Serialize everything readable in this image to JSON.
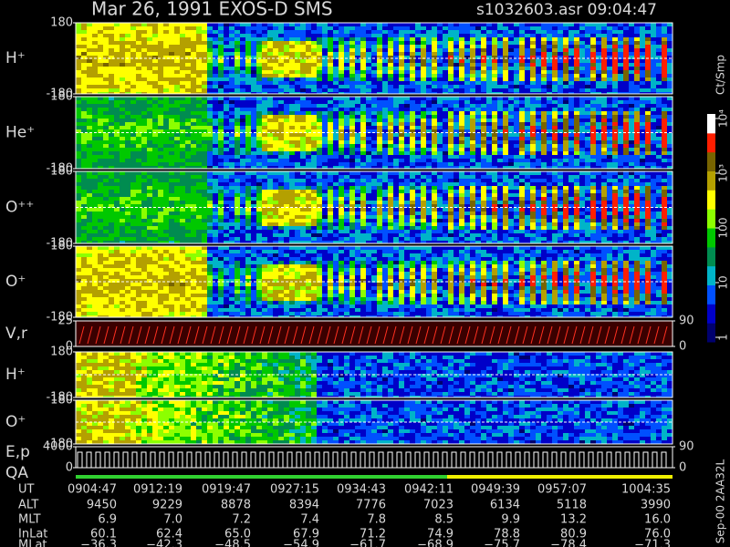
{
  "header": {
    "title": "Mar 26, 1991   EXOS-D SMS",
    "file": "s1032603.asr  09:04:47"
  },
  "chart_data": [
    {
      "type": "spectrogram",
      "label": "H⁺",
      "ylim": [
        -180,
        180
      ],
      "yticks": [
        -180,
        180
      ]
    },
    {
      "type": "spectrogram",
      "label": "He⁺",
      "ylim": [
        -180,
        180
      ],
      "yticks": [
        -180,
        180
      ]
    },
    {
      "type": "spectrogram",
      "label": "O⁺⁺",
      "ylim": [
        -180,
        180
      ],
      "yticks": [
        -180,
        180
      ]
    },
    {
      "type": "spectrogram",
      "label": "O⁺",
      "ylim": [
        -180,
        180
      ],
      "yticks": [
        -180,
        180
      ]
    },
    {
      "type": "trace",
      "label": "V,r",
      "ylim": [
        0,
        25
      ],
      "yticks": [
        0,
        25
      ],
      "y2lim": [
        0,
        90
      ],
      "y2ticks": [
        0,
        90
      ]
    },
    {
      "type": "spectrogram",
      "label": "H⁺",
      "ylim": [
        -180,
        180
      ],
      "yticks": [
        -180,
        180
      ]
    },
    {
      "type": "spectrogram",
      "label": "O⁺",
      "ylim": [
        -180,
        180
      ],
      "yticks": [
        -180,
        180
      ]
    },
    {
      "type": "staircase",
      "label": "E,p",
      "label2": "QA",
      "ylim": [
        0,
        4000
      ],
      "yticks": [
        0,
        4000
      ],
      "y2lim": [
        0,
        90
      ],
      "y2ticks": [
        0,
        90
      ]
    }
  ],
  "colorbar": {
    "label": "Ct/Smp",
    "log": true,
    "clim": [
      1,
      10000
    ],
    "ticks": [
      1,
      10,
      100,
      {
        "value": 1000,
        "label": "10³"
      },
      {
        "value": 10000,
        "label": "10⁴"
      }
    ],
    "colors": [
      "#00006e",
      "#0000c8",
      "#0050ff",
      "#00b4c8",
      "#008c50",
      "#00c800",
      "#8cff00",
      "#ffff00",
      "#b4a000",
      "#786400",
      "#ff1e00",
      "#ffffff"
    ]
  },
  "footer_note": "Sep-00 2AA32L",
  "table": {
    "rows": [
      [
        "UT",
        "0904:47",
        "0912:19",
        "0919:47",
        "0927:15",
        "0934:43",
        "0942:11",
        "0949:39",
        "0957:07",
        "1004:35"
      ],
      [
        "ALT",
        "9450",
        "9229",
        "8878",
        "8394",
        "7776",
        "7023",
        "6134",
        "5118",
        "3990"
      ],
      [
        "MLT",
        "6.9",
        "7.0",
        "7.2",
        "7.4",
        "7.8",
        "8.5",
        "9.9",
        "13.2",
        "16.0"
      ],
      [
        "InLat",
        "60.1",
        "62.4",
        "65.0",
        "67.9",
        "71.2",
        "74.9",
        "78.8",
        "80.9",
        "76.0"
      ],
      [
        "MLat",
        "−36.3",
        "−42.3",
        "−48.5",
        "−54.9",
        "−61.7",
        "−68.9",
        "−75.7",
        "−78.4",
        "−71.3"
      ]
    ]
  }
}
